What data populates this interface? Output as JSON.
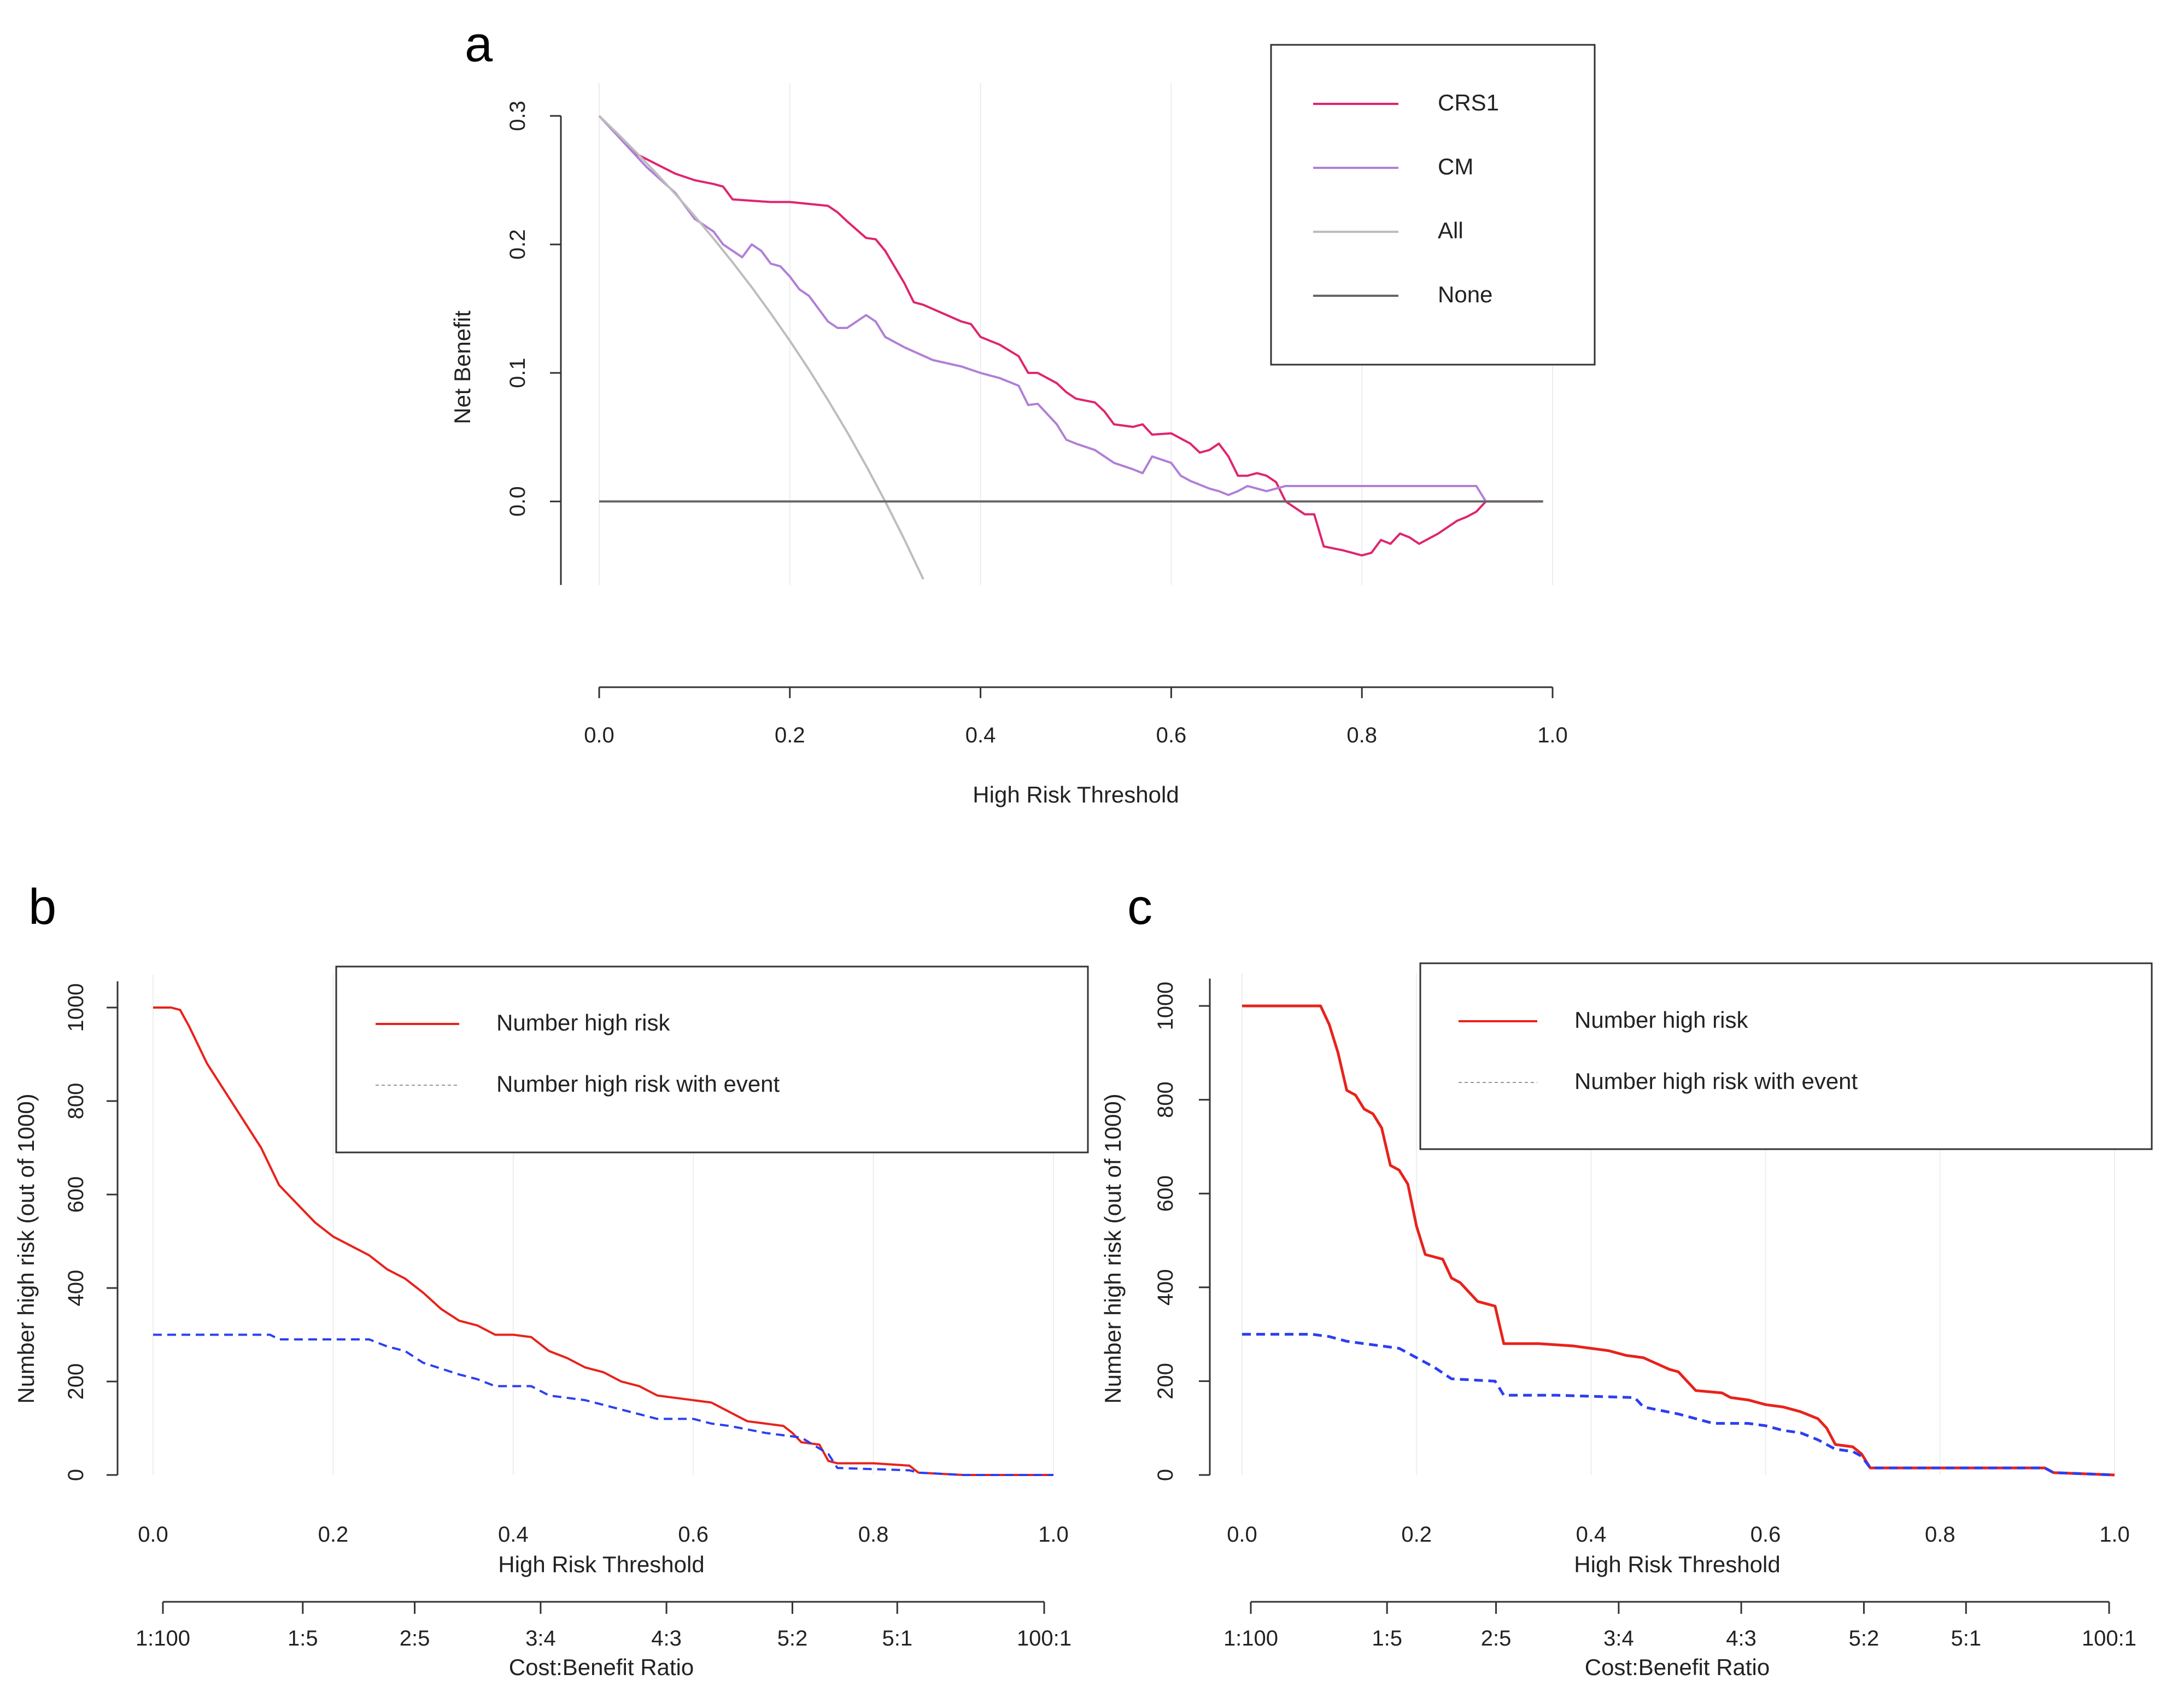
{
  "chart_data": [
    {
      "panel": "a",
      "type": "line",
      "title": "",
      "xlabel": "High Risk Threshold",
      "ylabel": "Net Benefit",
      "xlim": [
        0,
        1
      ],
      "ylim": [
        -0.065,
        0.3
      ],
      "xticks": [
        "0.0",
        "0.2",
        "0.4",
        "0.6",
        "0.8",
        "1.0"
      ],
      "yticks": [
        "0.0",
        "0.1",
        "0.2",
        "0.3"
      ],
      "legend_position": "top-right",
      "series": [
        {
          "name": "CRS1",
          "color": "#e0246e",
          "style": "solid",
          "x": [
            0,
            0.04,
            0.08,
            0.1,
            0.12,
            0.13,
            0.14,
            0.18,
            0.2,
            0.24,
            0.25,
            0.26,
            0.28,
            0.29,
            0.3,
            0.32,
            0.33,
            0.34,
            0.38,
            0.39,
            0.4,
            0.42,
            0.44,
            0.45,
            0.46,
            0.48,
            0.49,
            0.5,
            0.52,
            0.53,
            0.54,
            0.56,
            0.57,
            0.58,
            0.6,
            0.62,
            0.63,
            0.64,
            0.65,
            0.66,
            0.67,
            0.68,
            0.69,
            0.7,
            0.71,
            0.72,
            0.74,
            0.75,
            0.76,
            0.78,
            0.8,
            0.81,
            0.82,
            0.83,
            0.84,
            0.85,
            0.86,
            0.88,
            0.9,
            0.91,
            0.92,
            0.93,
            0.99
          ],
          "y": [
            0.3,
            0.27,
            0.255,
            0.25,
            0.247,
            0.245,
            0.235,
            0.233,
            0.233,
            0.23,
            0.225,
            0.218,
            0.205,
            0.204,
            0.195,
            0.17,
            0.155,
            0.153,
            0.14,
            0.138,
            0.128,
            0.122,
            0.113,
            0.1,
            0.1,
            0.092,
            0.085,
            0.08,
            0.077,
            0.07,
            0.06,
            0.058,
            0.06,
            0.052,
            0.053,
            0.045,
            0.038,
            0.04,
            0.045,
            0.035,
            0.02,
            0.02,
            0.022,
            0.02,
            0.015,
            0.0,
            -0.01,
            -0.01,
            -0.035,
            -0.038,
            -0.042,
            -0.04,
            -0.03,
            -0.033,
            -0.025,
            -0.028,
            -0.033,
            -0.025,
            -0.015,
            -0.012,
            -0.008,
            0.0,
            0.0
          ]
        },
        {
          "name": "CM",
          "color": "#b07fd6",
          "style": "solid",
          "x": [
            0,
            0.05,
            0.08,
            0.1,
            0.11,
            0.12,
            0.13,
            0.14,
            0.15,
            0.16,
            0.17,
            0.18,
            0.19,
            0.2,
            0.21,
            0.22,
            0.23,
            0.24,
            0.25,
            0.26,
            0.27,
            0.28,
            0.29,
            0.3,
            0.32,
            0.35,
            0.38,
            0.4,
            0.42,
            0.44,
            0.45,
            0.46,
            0.48,
            0.49,
            0.5,
            0.52,
            0.53,
            0.54,
            0.56,
            0.57,
            0.58,
            0.6,
            0.61,
            0.62,
            0.64,
            0.65,
            0.66,
            0.67,
            0.68,
            0.69,
            0.7,
            0.71,
            0.72,
            0.75,
            0.8,
            0.85,
            0.9,
            0.92,
            0.93,
            0.99
          ],
          "y": [
            0.3,
            0.26,
            0.24,
            0.22,
            0.215,
            0.21,
            0.2,
            0.195,
            0.19,
            0.2,
            0.195,
            0.185,
            0.183,
            0.175,
            0.165,
            0.16,
            0.15,
            0.14,
            0.135,
            0.135,
            0.14,
            0.145,
            0.14,
            0.128,
            0.12,
            0.11,
            0.105,
            0.1,
            0.096,
            0.09,
            0.075,
            0.076,
            0.06,
            0.048,
            0.045,
            0.04,
            0.035,
            0.03,
            0.025,
            0.022,
            0.035,
            0.03,
            0.02,
            0.016,
            0.01,
            0.008,
            0.005,
            0.008,
            0.012,
            0.01,
            0.008,
            0.01,
            0.012,
            0.012,
            0.012,
            0.012,
            0.012,
            0.012,
            0.0,
            0.0
          ]
        },
        {
          "name": "All",
          "color": "#bdbdbd",
          "style": "solid",
          "x": [
            0,
            0.02,
            0.04,
            0.06,
            0.08,
            0.1,
            0.12,
            0.14,
            0.16,
            0.18,
            0.2,
            0.22,
            0.24,
            0.26,
            0.28,
            0.3,
            0.32,
            0.34
          ],
          "y": [
            0.3,
            0.2857,
            0.2708,
            0.2553,
            0.2391,
            0.2222,
            0.2045,
            0.186,
            0.1667,
            0.1463,
            0.125,
            0.1026,
            0.0789,
            0.0541,
            0.0278,
            0.0,
            -0.0294,
            -0.0606
          ]
        },
        {
          "name": "None",
          "color": "#666666",
          "style": "solid",
          "x": [
            0,
            0.99
          ],
          "y": [
            0,
            0
          ]
        }
      ]
    },
    {
      "panel": "b",
      "type": "line",
      "title": "",
      "xlabel": "High Risk Threshold",
      "ylabel": "Number high risk (out of 1000)",
      "xlim": [
        0,
        1
      ],
      "ylim": [
        0,
        1000
      ],
      "xticks": [
        "0.0",
        "0.2",
        "0.4",
        "0.6",
        "0.8",
        "1.0"
      ],
      "yticks": [
        "0",
        "200",
        "400",
        "600",
        "800",
        "1000"
      ],
      "cost_benefit_label": "Cost:Benefit Ratio",
      "cost_benefit_ticks": [
        "1:100",
        "1:5",
        "2:5",
        "3:4",
        "4:3",
        "5:2",
        "5:1",
        "100:1"
      ],
      "legend_position": "top-right",
      "series": [
        {
          "name": "Number high risk",
          "color": "#e8221b",
          "style": "solid",
          "x": [
            0,
            0.02,
            0.03,
            0.04,
            0.06,
            0.08,
            0.1,
            0.12,
            0.14,
            0.16,
            0.18,
            0.2,
            0.22,
            0.24,
            0.26,
            0.27,
            0.28,
            0.3,
            0.32,
            0.34,
            0.36,
            0.38,
            0.4,
            0.42,
            0.44,
            0.46,
            0.48,
            0.5,
            0.52,
            0.54,
            0.56,
            0.58,
            0.6,
            0.62,
            0.64,
            0.66,
            0.68,
            0.7,
            0.71,
            0.72,
            0.74,
            0.75,
            0.76,
            0.8,
            0.84,
            0.85,
            0.9,
            1.0
          ],
          "y": [
            1000,
            1000,
            995,
            960,
            880,
            820,
            760,
            700,
            620,
            580,
            540,
            510,
            490,
            470,
            440,
            430,
            420,
            390,
            355,
            330,
            320,
            300,
            300,
            295,
            265,
            250,
            230,
            220,
            200,
            190,
            170,
            165,
            160,
            155,
            135,
            115,
            110,
            105,
            90,
            70,
            65,
            30,
            25,
            25,
            20,
            5,
            0,
            0
          ]
        },
        {
          "name": "Number high risk with event",
          "color": "#2b3ff0",
          "style": "dashed",
          "x": [
            0,
            0.13,
            0.14,
            0.24,
            0.26,
            0.28,
            0.3,
            0.34,
            0.36,
            0.38,
            0.42,
            0.44,
            0.48,
            0.5,
            0.54,
            0.56,
            0.6,
            0.62,
            0.64,
            0.68,
            0.72,
            0.75,
            0.76,
            0.84,
            0.85,
            0.9,
            1.0
          ],
          "y": [
            300,
            300,
            290,
            290,
            275,
            265,
            240,
            215,
            205,
            190,
            190,
            170,
            160,
            150,
            130,
            120,
            120,
            110,
            105,
            90,
            80,
            45,
            15,
            10,
            5,
            0,
            0
          ]
        }
      ]
    },
    {
      "panel": "c",
      "type": "line",
      "title": "",
      "xlabel": "High Risk Threshold",
      "ylabel": "Number high risk (out of 1000)",
      "xlim": [
        0,
        1
      ],
      "ylim": [
        0,
        1000
      ],
      "xticks": [
        "0.0",
        "0.2",
        "0.4",
        "0.6",
        "0.8",
        "1.0"
      ],
      "yticks": [
        "0",
        "200",
        "400",
        "600",
        "800",
        "1000"
      ],
      "cost_benefit_label": "Cost:Benefit Ratio",
      "cost_benefit_ticks": [
        "1:100",
        "1:5",
        "2:5",
        "3:4",
        "4:3",
        "5:2",
        "5:1",
        "100:1"
      ],
      "legend_position": "top-right",
      "series": [
        {
          "name": "Number high risk",
          "color": "#e8221b",
          "style": "solid",
          "x": [
            0,
            0.09,
            0.1,
            0.11,
            0.12,
            0.13,
            0.14,
            0.15,
            0.16,
            0.17,
            0.18,
            0.19,
            0.2,
            0.21,
            0.23,
            0.24,
            0.25,
            0.26,
            0.27,
            0.29,
            0.3,
            0.34,
            0.38,
            0.4,
            0.42,
            0.44,
            0.46,
            0.49,
            0.5,
            0.52,
            0.55,
            0.56,
            0.58,
            0.6,
            0.62,
            0.64,
            0.66,
            0.67,
            0.68,
            0.7,
            0.71,
            0.72,
            0.75,
            0.8,
            0.85,
            0.9,
            0.92,
            0.93,
            1.0
          ],
          "y": [
            1000,
            1000,
            960,
            900,
            820,
            810,
            780,
            770,
            740,
            660,
            650,
            620,
            530,
            470,
            460,
            420,
            410,
            390,
            370,
            360,
            280,
            280,
            275,
            270,
            265,
            255,
            250,
            225,
            220,
            180,
            175,
            165,
            160,
            150,
            145,
            135,
            120,
            100,
            65,
            60,
            45,
            15,
            15,
            15,
            15,
            15,
            15,
            5,
            0
          ]
        },
        {
          "name": "Number high risk with event",
          "color": "#2b3ff0",
          "style": "dashed",
          "x": [
            0,
            0.08,
            0.1,
            0.12,
            0.14,
            0.18,
            0.2,
            0.22,
            0.24,
            0.29,
            0.3,
            0.36,
            0.45,
            0.46,
            0.5,
            0.54,
            0.58,
            0.6,
            0.62,
            0.64,
            0.66,
            0.68,
            0.7,
            0.71,
            0.72,
            0.92,
            0.93,
            1.0
          ],
          "y": [
            300,
            300,
            295,
            285,
            280,
            270,
            250,
            230,
            205,
            200,
            170,
            170,
            165,
            145,
            130,
            110,
            110,
            105,
            95,
            90,
            75,
            55,
            50,
            40,
            15,
            15,
            5,
            0
          ]
        }
      ]
    }
  ]
}
